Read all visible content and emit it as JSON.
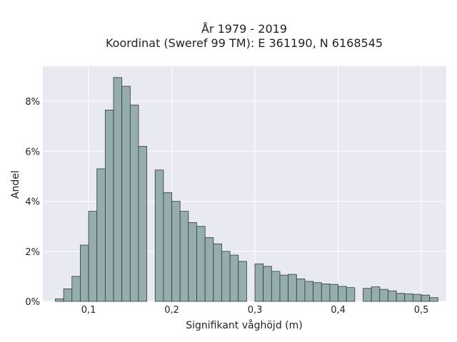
{
  "chart_data": {
    "type": "bar",
    "title": [
      "År 1979 - 2019",
      "Koordinat (Sweref 99 TM): E 361190, N 6168545"
    ],
    "xlabel": "Signifikant våghöjd (m)",
    "ylabel": "Andel",
    "xlim": [
      0.045,
      0.53
    ],
    "ylim": [
      0,
      9.4
    ],
    "x_ticks": [
      0.1,
      0.2,
      0.3,
      0.4,
      0.5
    ],
    "x_tick_labels": [
      "0,1",
      "0,2",
      "0,3",
      "0,4",
      "0,5"
    ],
    "y_ticks": [
      0,
      2,
      4,
      6,
      8
    ],
    "y_tick_labels": [
      "0%",
      "2%",
      "4%",
      "6%",
      "8%"
    ],
    "bin_width": 0.01,
    "bin_left": [
      0.06,
      0.07,
      0.08,
      0.09,
      0.1,
      0.11,
      0.12,
      0.13,
      0.14,
      0.15,
      0.16,
      0.17,
      0.18,
      0.19,
      0.2,
      0.21,
      0.22,
      0.23,
      0.24,
      0.25,
      0.26,
      0.27,
      0.28,
      0.29,
      0.3,
      0.31,
      0.32,
      0.33,
      0.34,
      0.35,
      0.36,
      0.37,
      0.38,
      0.39,
      0.4,
      0.41,
      0.42,
      0.43,
      0.44,
      0.45,
      0.46,
      0.47,
      0.48,
      0.49,
      0.5,
      0.51
    ],
    "values": [
      0.1,
      0.5,
      1.0,
      2.25,
      3.6,
      5.3,
      7.65,
      8.95,
      8.6,
      7.85,
      6.2,
      0.0,
      5.25,
      4.35,
      4.0,
      3.6,
      3.15,
      3.0,
      2.55,
      2.3,
      2.0,
      1.85,
      1.6,
      0.0,
      1.5,
      1.4,
      1.2,
      1.05,
      1.08,
      0.9,
      0.8,
      0.75,
      0.7,
      0.68,
      0.6,
      0.55,
      0.0,
      0.52,
      0.58,
      0.48,
      0.42,
      0.32,
      0.3,
      0.28,
      0.25,
      0.15
    ],
    "colors": {
      "bar": "#96adad",
      "plot_bg": "#e9e9f1",
      "grid": "#ffffff"
    },
    "grid": true,
    "legend": "none"
  }
}
